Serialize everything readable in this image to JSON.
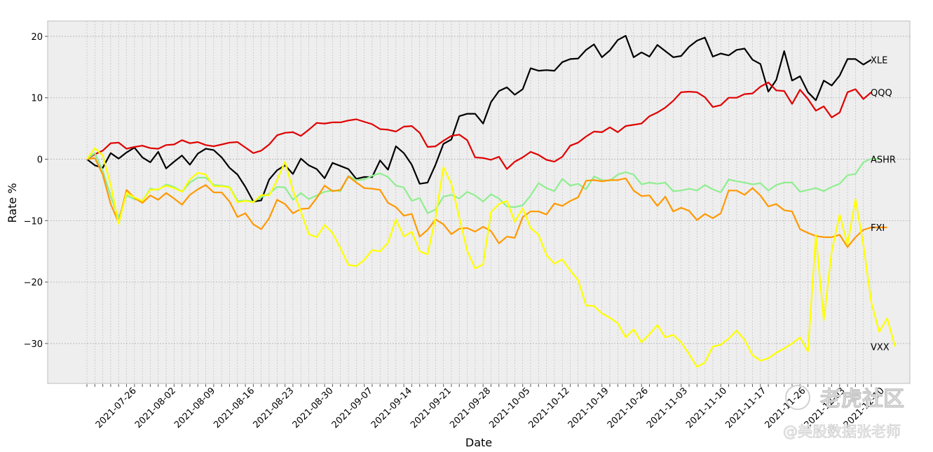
{
  "chart_data": {
    "type": "line",
    "xlabel": "Date",
    "ylabel": "Rate %",
    "ylim": [
      -36.5,
      22.5
    ],
    "yticks": [
      20,
      10,
      0,
      -10,
      -20,
      -30
    ],
    "ytick_labels": [
      "20",
      "10",
      "0",
      "−10",
      "−20",
      "−30"
    ],
    "xtick_labels": [
      "2021-07-26",
      "2021-08-02",
      "2021-08-09",
      "2021-08-16",
      "2021-08-23",
      "2021-08-30",
      "2021-09-07",
      "2021-09-14",
      "2021-09-21",
      "2021-09-28",
      "2021-10-05",
      "2021-10-12",
      "2021-10-19",
      "2021-10-26",
      "2021-11-03",
      "2021-11-10",
      "2021-11-17",
      "2021-11-26",
      "2021-12-03",
      "2021-12-10"
    ],
    "grid": true,
    "background": "#eeeeee",
    "series": [
      {
        "name": "XLE",
        "color": "#000000",
        "values": [
          0,
          -1,
          -1.4,
          1,
          0.1,
          1.1,
          1.9,
          0.3,
          -0.5,
          1.2,
          -1.5,
          -0.4,
          0.6,
          -0.9,
          0.9,
          1.7,
          1.5,
          0.3,
          -1.4,
          -2.5,
          -4.5,
          -6.9,
          -6.7,
          -3.3,
          -1.8,
          -1,
          -2.4,
          0.1,
          -1,
          -1.6,
          -3.1,
          -0.6,
          -1.1,
          -1.6,
          -3.2,
          -2.9,
          -2.9,
          -0.2,
          -1.7,
          2.1,
          1,
          -0.9,
          -4,
          -3.8,
          -0.9,
          2.5,
          3.2,
          7,
          7.4,
          7.4,
          5.8,
          9.3,
          11.1,
          11.7,
          10.5,
          11.4,
          14.8,
          14.4,
          14.5,
          14.4,
          15.8,
          16.3,
          16.4,
          17.8,
          18.7,
          16.6,
          17.7,
          19.4,
          20.1,
          16.6,
          17.4,
          16.7,
          18.6,
          17.6,
          16.6,
          16.8,
          18.3,
          19.3,
          19.8,
          16.7,
          17.2,
          16.9,
          17.8,
          18,
          16.2,
          15.5,
          11,
          12.9,
          17.6,
          12.8,
          13.5,
          10.9,
          9.6,
          12.8,
          12,
          13.6,
          16.3,
          16.3,
          15.4,
          16.2
        ]
      },
      {
        "name": "QQQ",
        "color": "#e00000",
        "values": [
          0,
          0.8,
          1.4,
          2.6,
          2.7,
          1.7,
          2,
          2.2,
          1.8,
          1.7,
          2.3,
          2.4,
          3.1,
          2.6,
          2.8,
          2.3,
          2.1,
          2.4,
          2.7,
          2.8,
          1.9,
          1,
          1.4,
          2.4,
          3.9,
          4.3,
          4.4,
          3.8,
          4.8,
          5.9,
          5.8,
          6,
          6,
          6.3,
          6.5,
          6.1,
          5.7,
          4.9,
          4.8,
          4.5,
          5.3,
          5.4,
          4.3,
          2,
          2.1,
          3,
          3.8,
          4,
          3.1,
          0.3,
          0.2,
          -0.1,
          0.4,
          -1.6,
          -0.4,
          0.3,
          1.2,
          0.7,
          -0.1,
          -0.4,
          0.4,
          2.2,
          2.7,
          3.7,
          4.5,
          4.4,
          5.2,
          4.4,
          5.4,
          5.6,
          5.8,
          7,
          7.6,
          8.4,
          9.5,
          10.9,
          11,
          10.9,
          10.1,
          8.5,
          8.8,
          10,
          10,
          10.6,
          10.7,
          11.8,
          12.5,
          11.2,
          11.1,
          9,
          11.3,
          9.8,
          7.9,
          8.6,
          6.8,
          7.6,
          10.9,
          11.4,
          9.8,
          10.9
        ]
      },
      {
        "name": "ASHR",
        "color": "#90ee90",
        "values": [
          0,
          1,
          -1.9,
          -6,
          -9.6,
          -5.9,
          -6.5,
          -6.8,
          -4.8,
          -5,
          -4.1,
          -4.5,
          -5.3,
          -3.8,
          -3,
          -3,
          -4.2,
          -4.3,
          -4.5,
          -6.8,
          -6.7,
          -6.9,
          -6.2,
          -5.6,
          -4.5,
          -4.6,
          -6.6,
          -5.5,
          -6.5,
          -5.9,
          -5.3,
          -5.1,
          -5.2,
          -2.7,
          -3.4,
          -3.3,
          -2.7,
          -2.3,
          -2.9,
          -4.3,
          -4.6,
          -6.8,
          -6.3,
          -8.8,
          -8.2,
          -6.1,
          -5.8,
          -6.4,
          -5.3,
          -5.9,
          -6.9,
          -5.7,
          -6.4,
          -7.7,
          -7.8,
          -7.5,
          -5.9,
          -3.9,
          -4.7,
          -5.2,
          -3.2,
          -4.3,
          -4,
          -4.9,
          -2.8,
          -3.4,
          -3.5,
          -2.5,
          -2.1,
          -2.5,
          -4.1,
          -3.8,
          -4,
          -3.8,
          -5.2,
          -5.1,
          -4.8,
          -5.1,
          -4.2,
          -4.9,
          -5.4,
          -3.3,
          -3.6,
          -3.8,
          -4.1,
          -3.9,
          -5.1,
          -4.2,
          -3.8,
          -3.8,
          -5.3,
          -5,
          -4.7,
          -5.2,
          -4.5,
          -4,
          -2.6,
          -2.4,
          -0.5,
          0.1,
          0
        ]
      },
      {
        "name": "FXI",
        "color": "#ff9900",
        "values": [
          0,
          0.2,
          -2.5,
          -7.3,
          -10.3,
          -5,
          -6.3,
          -7.1,
          -5.9,
          -6.6,
          -5.5,
          -6.4,
          -7.4,
          -5.8,
          -4.9,
          -4.2,
          -5.4,
          -5.4,
          -6.9,
          -9.4,
          -8.8,
          -10.6,
          -11.4,
          -9.6,
          -6.6,
          -7.3,
          -8.8,
          -8.1,
          -8,
          -6.3,
          -4.3,
          -5.2,
          -5,
          -2.8,
          -3.8,
          -4.7,
          -4.8,
          -5,
          -7.1,
          -7.8,
          -9.2,
          -8.9,
          -12.6,
          -11.5,
          -9.8,
          -10.6,
          -12.2,
          -11.3,
          -11.2,
          -11.8,
          -11,
          -11.7,
          -13.7,
          -12.6,
          -12.8,
          -9.4,
          -8.5,
          -8.5,
          -9,
          -7.2,
          -7.6,
          -6.8,
          -6.2,
          -3.5,
          -3.4,
          -3.6,
          -3.4,
          -3.4,
          -3.1,
          -5.1,
          -6,
          -5.9,
          -7.6,
          -6.1,
          -8.5,
          -7.9,
          -8.4,
          -9.9,
          -8.9,
          -9.6,
          -8.8,
          -5.1,
          -5.1,
          -5.8,
          -4.7,
          -5.9,
          -7.7,
          -7.3,
          -8.3,
          -8.5,
          -11.4,
          -12,
          -12.5,
          -12.7,
          -12.7,
          -12.3,
          -14.3,
          -12.7,
          -11.5,
          -11.1,
          -11.1,
          -11.1
        ]
      },
      {
        "name": "VXX",
        "color": "#ffff00",
        "values": [
          0,
          1.8,
          0.6,
          -4.2,
          -10.5,
          -5.5,
          -6.2,
          -6.8,
          -5,
          -4.9,
          -4.3,
          -4.7,
          -5.3,
          -3.3,
          -2.2,
          -2.5,
          -4.4,
          -4.4,
          -4.6,
          -7,
          -6.8,
          -7,
          -5.8,
          -5.9,
          -3.4,
          -0.4,
          -5.1,
          -8.5,
          -12.2,
          -12.7,
          -10.7,
          -12,
          -14.5,
          -17.2,
          -17.4,
          -16.4,
          -14.8,
          -15,
          -13.6,
          -9.8,
          -12.6,
          -11.8,
          -15,
          -15.5,
          -9.5,
          -1.3,
          -4,
          -9.5,
          -14.9,
          -17.8,
          -17.1,
          -8.6,
          -7.3,
          -6.8,
          -10.2,
          -8,
          -11.2,
          -12.3,
          -15.6,
          -17,
          -16.3,
          -18.1,
          -19.7,
          -23.8,
          -23.9,
          -25.1,
          -25.8,
          -26.7,
          -29,
          -27.7,
          -29.8,
          -28.5,
          -27,
          -29,
          -28.6,
          -29.8,
          -31.7,
          -33.8,
          -33.1,
          -30.5,
          -30.2,
          -29.2,
          -27.9,
          -29.4,
          -31.9,
          -32.8,
          -32.4,
          -31.5,
          -30.8,
          -30,
          -29,
          -31.3,
          -12.3,
          -26.2,
          -15,
          -9,
          -13.9,
          -6.5,
          -14,
          -23.3,
          -28.1,
          -25.9,
          -30.5
        ]
      }
    ]
  },
  "watermark": {
    "line1": "老虎社区",
    "line2": "@美股数据张老师"
  }
}
